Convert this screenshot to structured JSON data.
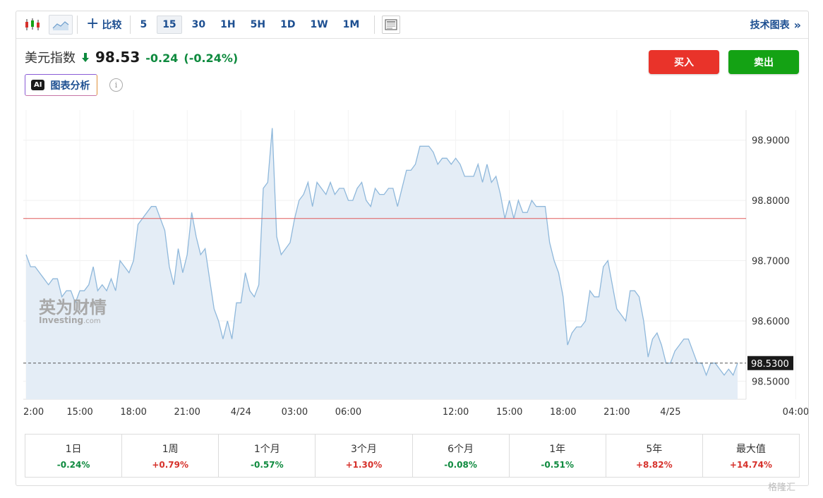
{
  "toolbar": {
    "compare_label": "比较",
    "intervals": [
      {
        "label": "5",
        "active": false
      },
      {
        "label": "15",
        "active": true
      },
      {
        "label": "30",
        "active": false
      },
      {
        "label": "1H",
        "active": false
      },
      {
        "label": "5H",
        "active": false
      },
      {
        "label": "1D",
        "active": false
      },
      {
        "label": "1W",
        "active": false
      },
      {
        "label": "1M",
        "active": false
      }
    ],
    "tech_chart_label": "技术图表",
    "tech_chart_arrow": "»"
  },
  "header": {
    "name": "美元指数",
    "price": "98.53",
    "change": "-0.24",
    "change_pct": "(-0.24%)"
  },
  "ai": {
    "badge": "AI",
    "label": "图表分析"
  },
  "info_icon_glyph": "i",
  "actions": {
    "buy": "买入",
    "sell": "卖出"
  },
  "watermark": {
    "cn": "英为财情",
    "en": "Investing",
    "suffix": ".com"
  },
  "colors": {
    "line": "#8fb8db",
    "area": "#e4edf6",
    "ref_line": "#e05a5a",
    "buy": "#e9332a",
    "sell": "#14a214",
    "negative": "#0e8a3e",
    "positive": "#d6312b"
  },
  "chart_data": {
    "type": "area",
    "ylim": [
      98.47,
      98.95
    ],
    "y_ticks": [
      "98.9000",
      "98.8000",
      "98.7000",
      "98.6000",
      "98.5000"
    ],
    "current_value_label": "98.5300",
    "current_value": 98.53,
    "reference_value": 98.77,
    "x_ticks": [
      {
        "label": "2:00",
        "i": 0
      },
      {
        "label": "15:00",
        "i": 12
      },
      {
        "label": "18:00",
        "i": 24
      },
      {
        "label": "21:00",
        "i": 36
      },
      {
        "label": "4/24",
        "i": 48
      },
      {
        "label": "03:00",
        "i": 60
      },
      {
        "label": "06:00",
        "i": 72
      },
      {
        "label": "12:00",
        "i": 96
      },
      {
        "label": "15:00",
        "i": 108
      },
      {
        "label": "18:00",
        "i": 120
      },
      {
        "label": "21:00",
        "i": 132
      },
      {
        "label": "4/25",
        "i": 144
      },
      {
        "label": "04:00",
        "i": 172
      }
    ],
    "values": [
      98.71,
      98.69,
      98.69,
      98.68,
      98.67,
      98.66,
      98.67,
      98.67,
      98.64,
      98.65,
      98.65,
      98.63,
      98.65,
      98.65,
      98.66,
      98.69,
      98.65,
      98.66,
      98.65,
      98.67,
      98.65,
      98.7,
      98.69,
      98.68,
      98.7,
      98.76,
      98.77,
      98.78,
      98.79,
      98.79,
      98.77,
      98.75,
      98.69,
      98.66,
      98.72,
      98.68,
      98.71,
      98.78,
      98.74,
      98.71,
      98.72,
      98.67,
      98.62,
      98.6,
      98.57,
      98.6,
      98.57,
      98.63,
      98.63,
      98.68,
      98.65,
      98.64,
      98.66,
      98.82,
      98.83,
      98.92,
      98.74,
      98.71,
      98.72,
      98.73,
      98.77,
      98.8,
      98.81,
      98.83,
      98.79,
      98.83,
      98.82,
      98.81,
      98.83,
      98.81,
      98.82,
      98.82,
      98.8,
      98.8,
      98.82,
      98.83,
      98.8,
      98.79,
      98.82,
      98.81,
      98.81,
      98.82,
      98.82,
      98.79,
      98.82,
      98.85,
      98.85,
      98.86,
      98.89,
      98.89,
      98.89,
      98.88,
      98.86,
      98.87,
      98.87,
      98.86,
      98.87,
      98.86,
      98.84,
      98.84,
      98.84,
      98.86,
      98.83,
      98.86,
      98.83,
      98.84,
      98.81,
      98.77,
      98.8,
      98.77,
      98.8,
      98.78,
      98.78,
      98.8,
      98.79,
      98.79,
      98.79,
      98.73,
      98.7,
      98.68,
      98.64,
      98.56,
      98.58,
      98.59,
      98.59,
      98.6,
      98.65,
      98.64,
      98.64,
      98.69,
      98.7,
      98.66,
      98.62,
      98.61,
      98.6,
      98.65,
      98.65,
      98.64,
      98.6,
      98.54,
      98.57,
      98.58,
      98.56,
      98.53,
      98.53,
      98.55,
      98.56,
      98.57,
      98.57,
      98.55,
      98.53,
      98.53,
      98.51,
      98.53,
      98.53,
      98.52,
      98.51,
      98.52,
      98.51,
      98.53
    ]
  },
  "periods": [
    {
      "label": "1日",
      "value": "-0.24%",
      "sign": "neg"
    },
    {
      "label": "1周",
      "value": "+0.79%",
      "sign": "pos"
    },
    {
      "label": "1个月",
      "value": "-0.57%",
      "sign": "neg"
    },
    {
      "label": "3个月",
      "value": "+1.30%",
      "sign": "pos"
    },
    {
      "label": "6个月",
      "value": "-0.08%",
      "sign": "neg"
    },
    {
      "label": "1年",
      "value": "-0.51%",
      "sign": "neg"
    },
    {
      "label": "5年",
      "value": "+8.82%",
      "sign": "pos"
    },
    {
      "label": "最大值",
      "value": "+14.74%",
      "sign": "pos"
    }
  ],
  "corner_mark": "格隆汇"
}
